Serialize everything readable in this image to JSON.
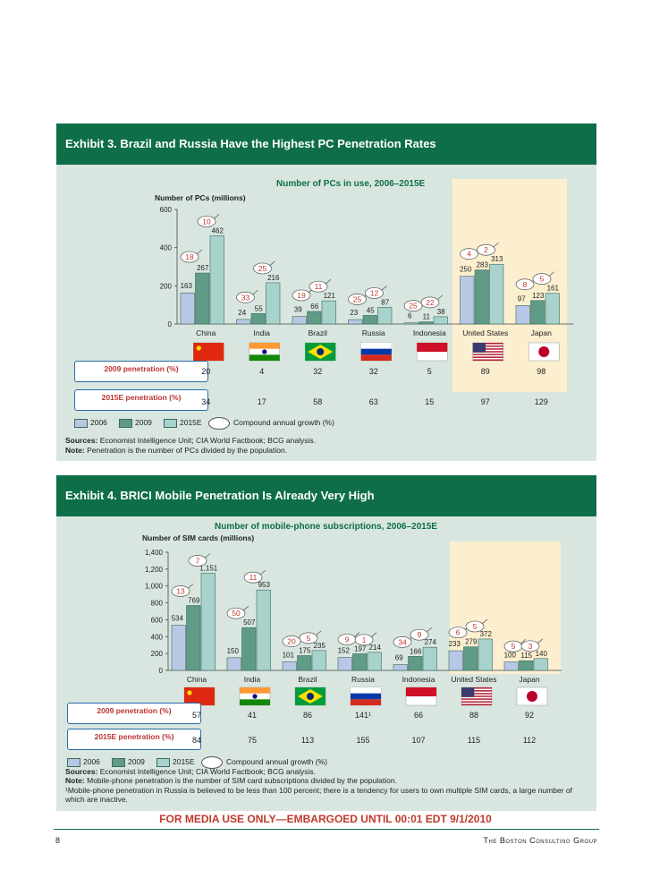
{
  "colors": {
    "bar2006": "#b9c7e6",
    "bar2009": "#5f9b87",
    "bar2015": "#a8d3cd",
    "highlight": "#fcefd0",
    "title_bg": "#0e6e48"
  },
  "exhibit3": {
    "title": "Exhibit 3. Brazil and Russia Have the Highest PC Penetration Rates",
    "chart_data": {
      "type": "bar",
      "title": "Number of PCs in use, 2006–2015E",
      "ylabel": "Number of PCs (millions)",
      "ylim": [
        0,
        600
      ],
      "yticks": [
        "0",
        "200",
        "400",
        "600"
      ],
      "categories": [
        "China",
        "India",
        "Brazil",
        "Russia",
        "Indonesia",
        "United States",
        "Japan"
      ],
      "series": [
        {
          "name": "2006",
          "values": [
            163,
            24,
            39,
            23,
            6,
            250,
            97
          ],
          "labels": [
            "163",
            "24",
            "39",
            "23",
            "6",
            "250",
            "97"
          ]
        },
        {
          "name": "2009",
          "values": [
            267,
            55,
            66,
            45,
            11,
            283,
            123
          ],
          "labels": [
            "267",
            "55",
            "66",
            "45",
            "11",
            "283",
            "123"
          ]
        },
        {
          "name": "2015E",
          "values": [
            462,
            216,
            121,
            87,
            38,
            313,
            161
          ],
          "labels": [
            "462",
            "216",
            "121",
            "87",
            "38",
            "313",
            "161"
          ]
        }
      ],
      "cagr_bubbles": [
        [
          "18",
          "10"
        ],
        [
          "33",
          "25"
        ],
        [
          "19",
          "11"
        ],
        [
          "25",
          "12"
        ],
        [
          "25",
          "22"
        ],
        [
          "4",
          "2"
        ],
        [
          "8",
          "5"
        ]
      ]
    },
    "penetration_2009_label": "2009 penetration (%)",
    "penetration_2009": [
      "20",
      "4",
      "32",
      "32",
      "5",
      "89",
      "98"
    ],
    "penetration_2015_label": "2015E penetration (%)",
    "penetration_2015": [
      "34",
      "17",
      "58",
      "63",
      "15",
      "97",
      "129"
    ],
    "legend": [
      "2006",
      "2009",
      "2015E",
      "Compound annual growth (%)"
    ],
    "sources_label": "Sources:",
    "sources": "Economist Intelligence Unit; CIA World Factbook; BCG analysis.",
    "note_label": "Note:",
    "note": "Penetration is the number of PCs divided by the population."
  },
  "exhibit4": {
    "title": "Exhibit 4. BRICI Mobile Penetration Is Already Very High",
    "chart_data": {
      "type": "bar",
      "title": "Number of mobile-phone subscriptions, 2006–2015E",
      "ylabel": "Number of SIM cards (millions)",
      "ylim": [
        0,
        1400
      ],
      "yticks": [
        "0",
        "200",
        "400",
        "600",
        "800",
        "1,000",
        "1,200",
        "1,400"
      ],
      "categories": [
        "China",
        "India",
        "Brazil",
        "Russia",
        "Indonesia",
        "United States",
        "Japan"
      ],
      "series": [
        {
          "name": "2006",
          "values": [
            534,
            150,
            101,
            152,
            69,
            233,
            100
          ],
          "labels": [
            "534",
            "150",
            "101",
            "152",
            "69",
            "233",
            "100"
          ]
        },
        {
          "name": "2009",
          "values": [
            769,
            507,
            175,
            197,
            166,
            279,
            115
          ],
          "labels": [
            "769",
            "507",
            "175",
            "197",
            "166",
            "279",
            "115"
          ]
        },
        {
          "name": "2015E",
          "values": [
            1151,
            953,
            235,
            214,
            274,
            372,
            140
          ],
          "labels": [
            "1,151",
            "953",
            "235",
            "214",
            "274",
            "372",
            "140"
          ]
        }
      ],
      "cagr_bubbles": [
        [
          "13",
          "7"
        ],
        [
          "50",
          "11"
        ],
        [
          "20",
          "5"
        ],
        [
          "9",
          "1"
        ],
        [
          "34",
          "9"
        ],
        [
          "6",
          "5"
        ],
        [
          "5",
          "3"
        ]
      ]
    },
    "penetration_2009_label": "2009 penetration (%)",
    "penetration_2009": [
      "57",
      "41",
      "86",
      "141¹",
      "66",
      "88",
      "92"
    ],
    "penetration_2015_label": "2015E penetration (%)",
    "penetration_2015": [
      "84",
      "75",
      "113",
      "155",
      "107",
      "115",
      "112"
    ],
    "legend": [
      "2006",
      "2009",
      "2015E",
      "Compound annual growth (%)"
    ],
    "sources_label": "Sources:",
    "sources": "Economist Intelligence Unit; CIA World Factbook; BCG analysis.",
    "note_label": "Note:",
    "note": "Mobile-phone penetration is the number of SIM card subscriptions divided by the population.",
    "footnote": "¹Mobile-phone penetration in Russia is believed to be less than 100 percent; there is a tendency for users to own multiple SIM cards, a large number of which are inactive."
  },
  "footer": {
    "embargo": "FOR MEDIA USE ONLY—EMBARGOED UNTIL 00:01 EDT 9/1/2010",
    "page": "8",
    "firm": "The Boston Consulting Group"
  }
}
